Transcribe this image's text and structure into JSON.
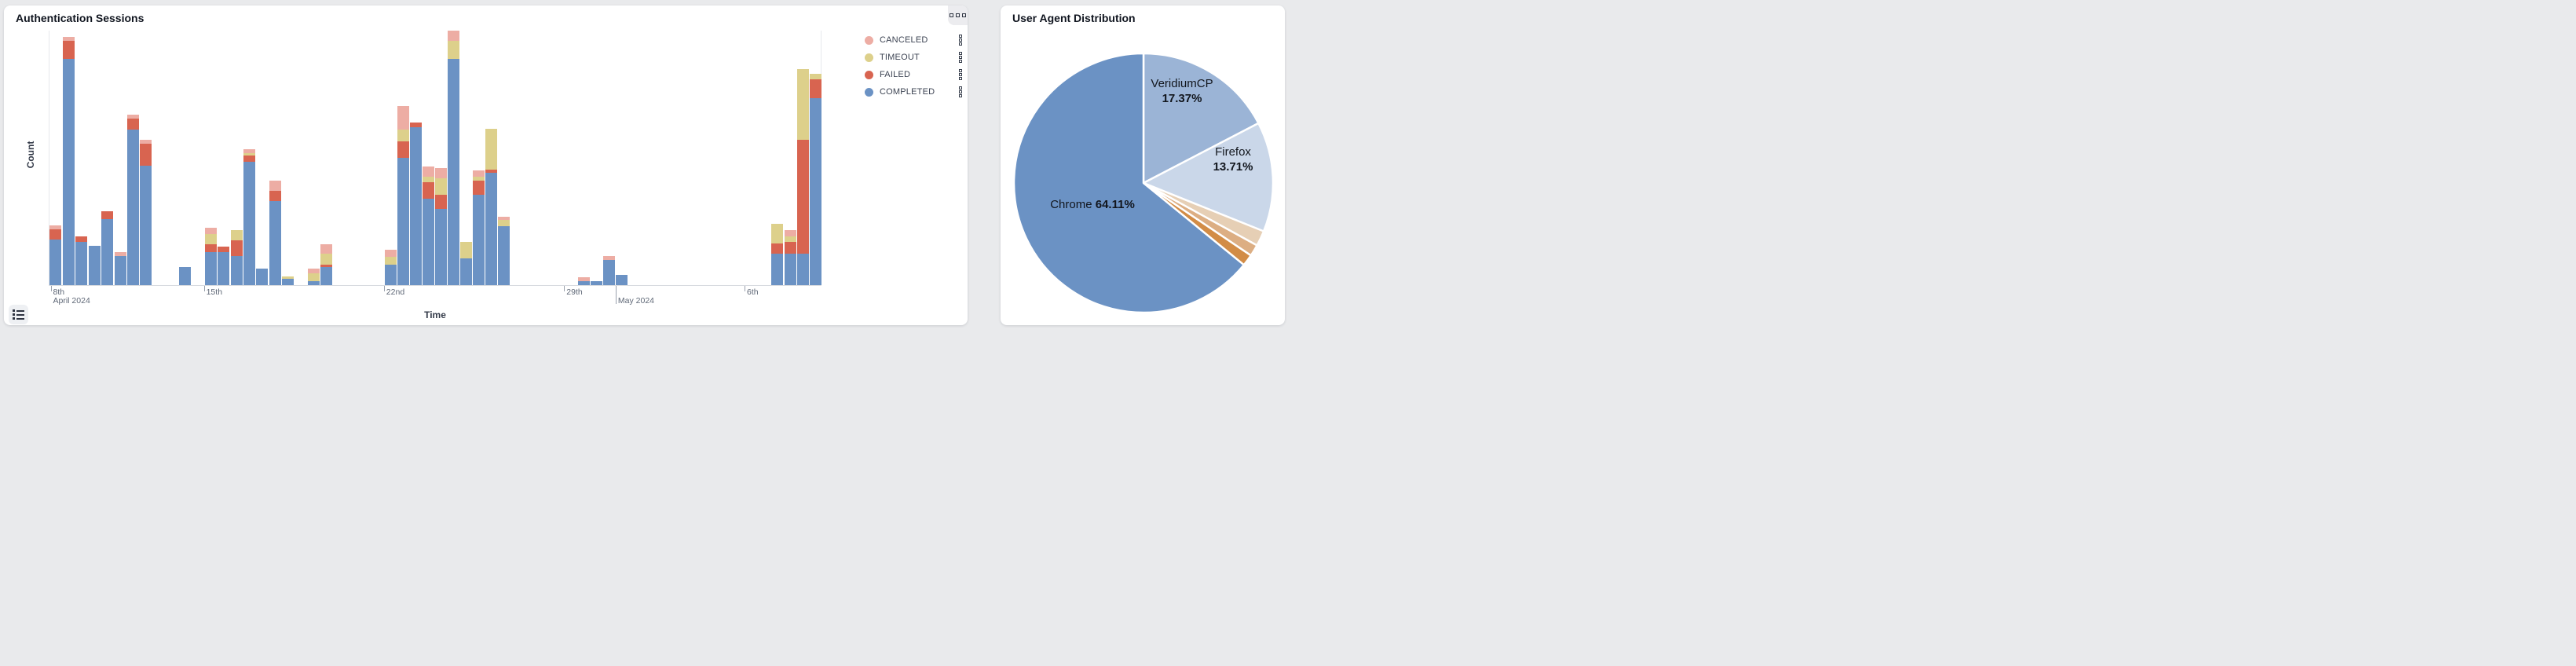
{
  "page": {
    "background_color": "#e9eaec",
    "card_color": "#ffffff"
  },
  "auth_card": {
    "title": "Authentication Sessions",
    "ylabel": "Count",
    "xlabel": "Time",
    "menu_button_icon": "grip-squares-icon",
    "data_list_button_icon": "list-icon",
    "legend": [
      {
        "label": "CANCELED",
        "color": "#edada4"
      },
      {
        "label": "TIMEOUT",
        "color": "#ddd08b"
      },
      {
        "label": "FAILED",
        "color": "#d86450"
      },
      {
        "label": "COMPLETED",
        "color": "#6b92c4"
      }
    ]
  },
  "ua_card": {
    "title": "User Agent Distribution",
    "labels": {
      "veridium": {
        "name": "VeridiumCP",
        "pct": "17.37%"
      },
      "firefox": {
        "name": "Firefox",
        "pct": "13.71%"
      },
      "chrome": {
        "name": "Chrome",
        "pct": "64.11%"
      }
    }
  },
  "chart_data": [
    {
      "type": "bar",
      "stacked": true,
      "title": "Authentication Sessions",
      "xlabel": "Time",
      "ylabel": "Count",
      "grid": false,
      "legend_position": "top-right",
      "value_scale": "relative 0-100 (y axis has no numeric ticks; 100 = tallest bar)",
      "stack_order_bottom_to_top": [
        "COMPLETED",
        "FAILED",
        "TIMEOUT",
        "CANCELED"
      ],
      "series_colors": {
        "COMPLETED": "#6b92c4",
        "FAILED": "#d86450",
        "TIMEOUT": "#ddd08b",
        "CANCELED": "#edada4"
      },
      "x_axis_ticks": [
        {
          "pos": 0.0025,
          "label": "8th",
          "sublabel": "April 2024",
          "long_tick": false
        },
        {
          "pos": 0.2008,
          "label": "15th",
          "sublabel": "",
          "long_tick": false
        },
        {
          "pos": 0.4337,
          "label": "22nd",
          "sublabel": "",
          "long_tick": false
        },
        {
          "pos": 0.667,
          "label": "29th",
          "sublabel": "",
          "long_tick": false
        },
        {
          "pos": 0.7336,
          "label": "",
          "sublabel": "May 2024",
          "long_tick": true
        },
        {
          "pos": 0.9004,
          "label": "6th",
          "sublabel": "",
          "long_tick": false
        }
      ],
      "bar_width_fraction": 0.0153,
      "bars": [
        {
          "pos": 0.0,
          "completed": 18,
          "failed": 4,
          "timeout": 0,
          "canceled": 1.5
        },
        {
          "pos": 0.0168,
          "completed": 89,
          "failed": 7,
          "timeout": 0,
          "canceled": 1.5
        },
        {
          "pos": 0.0336,
          "completed": 17,
          "failed": 2,
          "timeout": 0,
          "canceled": 0
        },
        {
          "pos": 0.0503,
          "completed": 15.5,
          "failed": 0,
          "timeout": 0,
          "canceled": 0
        },
        {
          "pos": 0.0671,
          "completed": 26,
          "failed": 3,
          "timeout": 0,
          "canceled": 0
        },
        {
          "pos": 0.0839,
          "completed": 11.5,
          "failed": 0,
          "timeout": 0,
          "canceled": 1.5
        },
        {
          "pos": 0.1002,
          "completed": 61,
          "failed": 4.5,
          "timeout": 0,
          "canceled": 1.5
        },
        {
          "pos": 0.1169,
          "completed": 47,
          "failed": 8.5,
          "timeout": 0,
          "canceled": 1.5
        },
        {
          "pos": 0.1673,
          "completed": 7,
          "failed": 0,
          "timeout": 0,
          "canceled": 0
        },
        {
          "pos": 0.2008,
          "completed": 13,
          "failed": 3,
          "timeout": 4,
          "canceled": 2.5
        },
        {
          "pos": 0.2176,
          "completed": 13,
          "failed": 2,
          "timeout": 0,
          "canceled": 0
        },
        {
          "pos": 0.2344,
          "completed": 11.5,
          "failed": 6,
          "timeout": 4,
          "canceled": 0
        },
        {
          "pos": 0.2506,
          "completed": 48.5,
          "failed": 2.5,
          "timeout": 1,
          "canceled": 1.5
        },
        {
          "pos": 0.2674,
          "completed": 6.5,
          "failed": 0,
          "timeout": 0,
          "canceled": 0
        },
        {
          "pos": 0.2842,
          "completed": 33,
          "failed": 4,
          "timeout": 0,
          "canceled": 4
        },
        {
          "pos": 0.301,
          "completed": 2.5,
          "failed": 0,
          "timeout": 1,
          "canceled": 0
        },
        {
          "pos": 0.334,
          "completed": 1.5,
          "failed": 0,
          "timeout": 3,
          "canceled": 2
        },
        {
          "pos": 0.3508,
          "completed": 7,
          "failed": 1,
          "timeout": 4.5,
          "canceled": 3.5
        },
        {
          "pos": 0.4337,
          "completed": 8,
          "failed": 0,
          "timeout": 3,
          "canceled": 3
        },
        {
          "pos": 0.4499,
          "completed": 50,
          "failed": 6.5,
          "timeout": 4.5,
          "canceled": 9.5
        },
        {
          "pos": 0.4662,
          "completed": 62,
          "failed": 2,
          "timeout": 0,
          "canceled": 0
        },
        {
          "pos": 0.4825,
          "completed": 34,
          "failed": 6.5,
          "timeout": 2,
          "canceled": 4
        },
        {
          "pos": 0.4987,
          "completed": 30,
          "failed": 5.5,
          "timeout": 6.5,
          "canceled": 4
        },
        {
          "pos": 0.5155,
          "completed": 89,
          "failed": 0,
          "timeout": 7,
          "canceled": 4
        },
        {
          "pos": 0.5318,
          "completed": 10.5,
          "failed": 0,
          "timeout": 6.5,
          "canceled": 0
        },
        {
          "pos": 0.548,
          "completed": 35.5,
          "failed": 5.5,
          "timeout": 1.5,
          "canceled": 2.5
        },
        {
          "pos": 0.5643,
          "completed": 44,
          "failed": 1.5,
          "timeout": 16,
          "canceled": 0
        },
        {
          "pos": 0.5806,
          "completed": 23,
          "failed": 0,
          "timeout": 2.5,
          "canceled": 1.5
        },
        {
          "pos": 0.6838,
          "completed": 1.5,
          "failed": 0,
          "timeout": 0,
          "canceled": 1.5
        },
        {
          "pos": 0.7001,
          "completed": 1.5,
          "failed": 0,
          "timeout": 0,
          "canceled": 0
        },
        {
          "pos": 0.7168,
          "completed": 10,
          "failed": 0,
          "timeout": 0,
          "canceled": 1.5
        },
        {
          "pos": 0.7331,
          "completed": 4,
          "failed": 0,
          "timeout": 0,
          "canceled": 0
        },
        {
          "pos": 0.9339,
          "completed": 12.5,
          "failed": 4,
          "timeout": 7.5,
          "canceled": 0
        },
        {
          "pos": 0.9507,
          "completed": 12.5,
          "failed": 4.5,
          "timeout": 2,
          "canceled": 2.5
        },
        {
          "pos": 0.967,
          "completed": 12.5,
          "failed": 44.5,
          "timeout": 28,
          "canceled": 0
        },
        {
          "pos": 0.9832,
          "completed": 73.5,
          "failed": 7.5,
          "timeout": 2,
          "canceled": 0
        }
      ]
    },
    {
      "type": "pie",
      "title": "User Agent Distribution",
      "start_angle": "12 o'clock, clockwise",
      "slices": [
        {
          "label": "VeridiumCP",
          "value": 17.37,
          "color": "#9bb4d6"
        },
        {
          "label": "Firefox",
          "value": 13.71,
          "color": "#cad7e9"
        },
        {
          "label": "",
          "value": 1.92,
          "color": "#e6cfb5"
        },
        {
          "label": "",
          "value": 1.45,
          "color": "#dcae83"
        },
        {
          "label": "",
          "value": 1.44,
          "color": "#d28c46"
        },
        {
          "label": "Chrome",
          "value": 64.11,
          "color": "#6b92c4"
        }
      ]
    }
  ]
}
